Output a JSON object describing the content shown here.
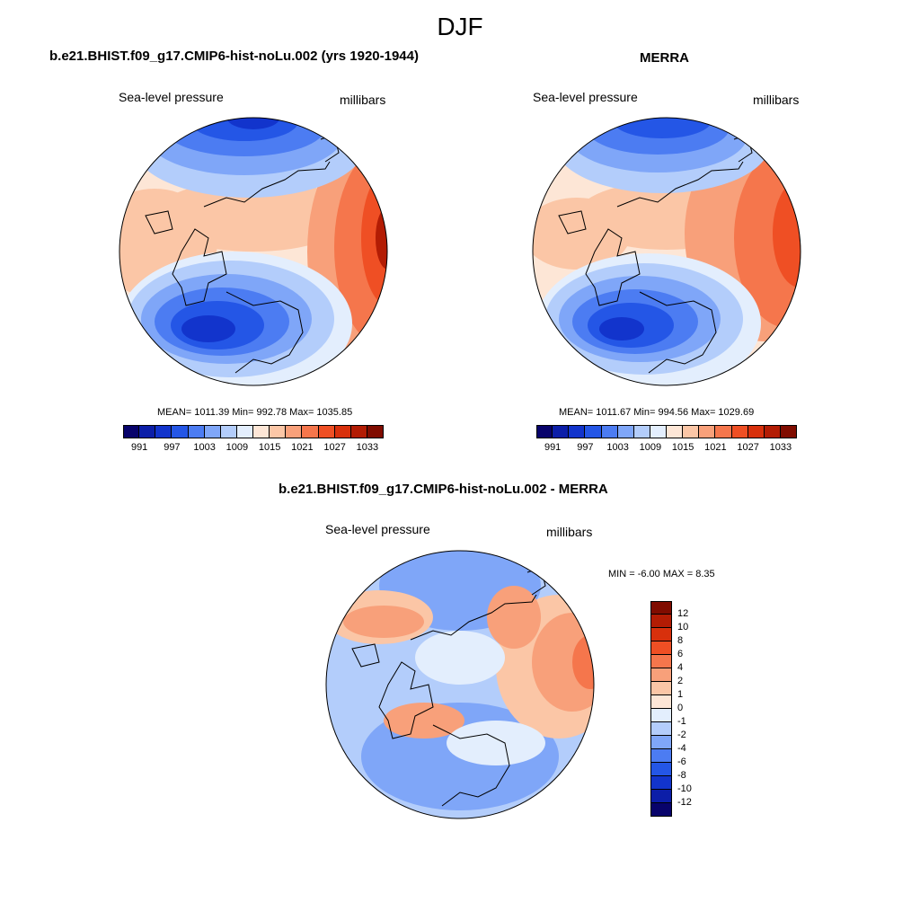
{
  "title": "DJF",
  "panels": [
    {
      "title": "b.e21.BHIST.f09_g17.CMIP6-hist-noLu.002 (yrs 1920-1944)",
      "variable": "Sea-level pressure",
      "units": "millibars",
      "stats": "MEAN= 1011.39  Min= 992.78  Max= 1035.85"
    },
    {
      "title": "MERRA",
      "variable": "Sea-level pressure",
      "units": "millibars",
      "stats": "MEAN= 1011.67  Min= 994.56  Max= 1029.69"
    },
    {
      "title": "b.e21.BHIST.f09_g17.CMIP6-hist-noLu.002 - MERRA",
      "variable": "Sea-level pressure",
      "units": "millibars",
      "stats": "MIN =  -6.00 MAX =   8.35"
    }
  ],
  "colorbar_abs": {
    "labels": [
      "991",
      "997",
      "1003",
      "1009",
      "1015",
      "1021",
      "1027",
      "1033"
    ],
    "colors": [
      "#08036b",
      "#0c1ea8",
      "#1234cc",
      "#2456e6",
      "#4c7cf2",
      "#7fa6f8",
      "#b3cdfb",
      "#e3eefd",
      "#fde6d6",
      "#fbc6a6",
      "#f8a07a",
      "#f5764c",
      "#ef4f24",
      "#d8300c",
      "#b31c04",
      "#800c00"
    ]
  },
  "colorbar_diff": {
    "labels": [
      "12",
      "10",
      "8",
      "6",
      "4",
      "2",
      "1",
      "0",
      "-1",
      "-2",
      "-4",
      "-6",
      "-8",
      "-10",
      "-12"
    ],
    "colors": [
      "#800c00",
      "#b31c04",
      "#d8300c",
      "#ef4f24",
      "#f5764c",
      "#f8a07a",
      "#fbc6a6",
      "#fde6d6",
      "#e3eefd",
      "#b3cdfb",
      "#7fa6f8",
      "#4c7cf2",
      "#2456e6",
      "#1234cc",
      "#0c1ea8",
      "#08036b"
    ]
  }
}
